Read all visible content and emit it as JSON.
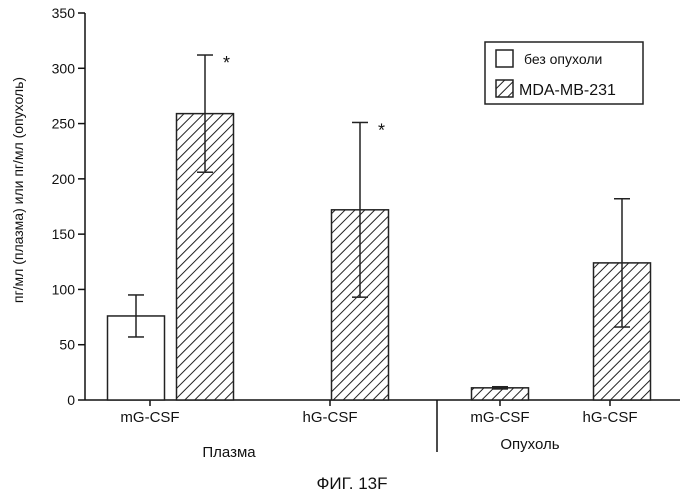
{
  "chart_data": {
    "type": "bar",
    "ylabel": "пг/мл (плазма) или пг/мл (опухоль)",
    "ylim": [
      0,
      350
    ],
    "yticks": [
      0,
      50,
      100,
      150,
      200,
      250,
      300,
      350
    ],
    "grid": false,
    "legend_position": "top-right",
    "groups": [
      {
        "label": "Плазма",
        "categories": [
          "mG-CSF",
          "hG-CSF"
        ]
      },
      {
        "label": "Опухоль",
        "categories": [
          "mG-CSF",
          "hG-CSF"
        ]
      }
    ],
    "categories": [
      "mG-CSF",
      "hG-CSF",
      "mG-CSF",
      "hG-CSF"
    ],
    "series": [
      {
        "name": "без опухоли",
        "fill": "white",
        "values": [
          76,
          null,
          null,
          null
        ],
        "errors": [
          19,
          null,
          null,
          null
        ],
        "significance": [
          "",
          "",
          "",
          ""
        ]
      },
      {
        "name": "MDA-MB-231",
        "fill": "hatched",
        "values": [
          259,
          172,
          11,
          124
        ],
        "errors": [
          53,
          79,
          1,
          58
        ],
        "significance": [
          "*",
          "*",
          "",
          ""
        ]
      }
    ],
    "caption": "ФИГ. 13F"
  }
}
